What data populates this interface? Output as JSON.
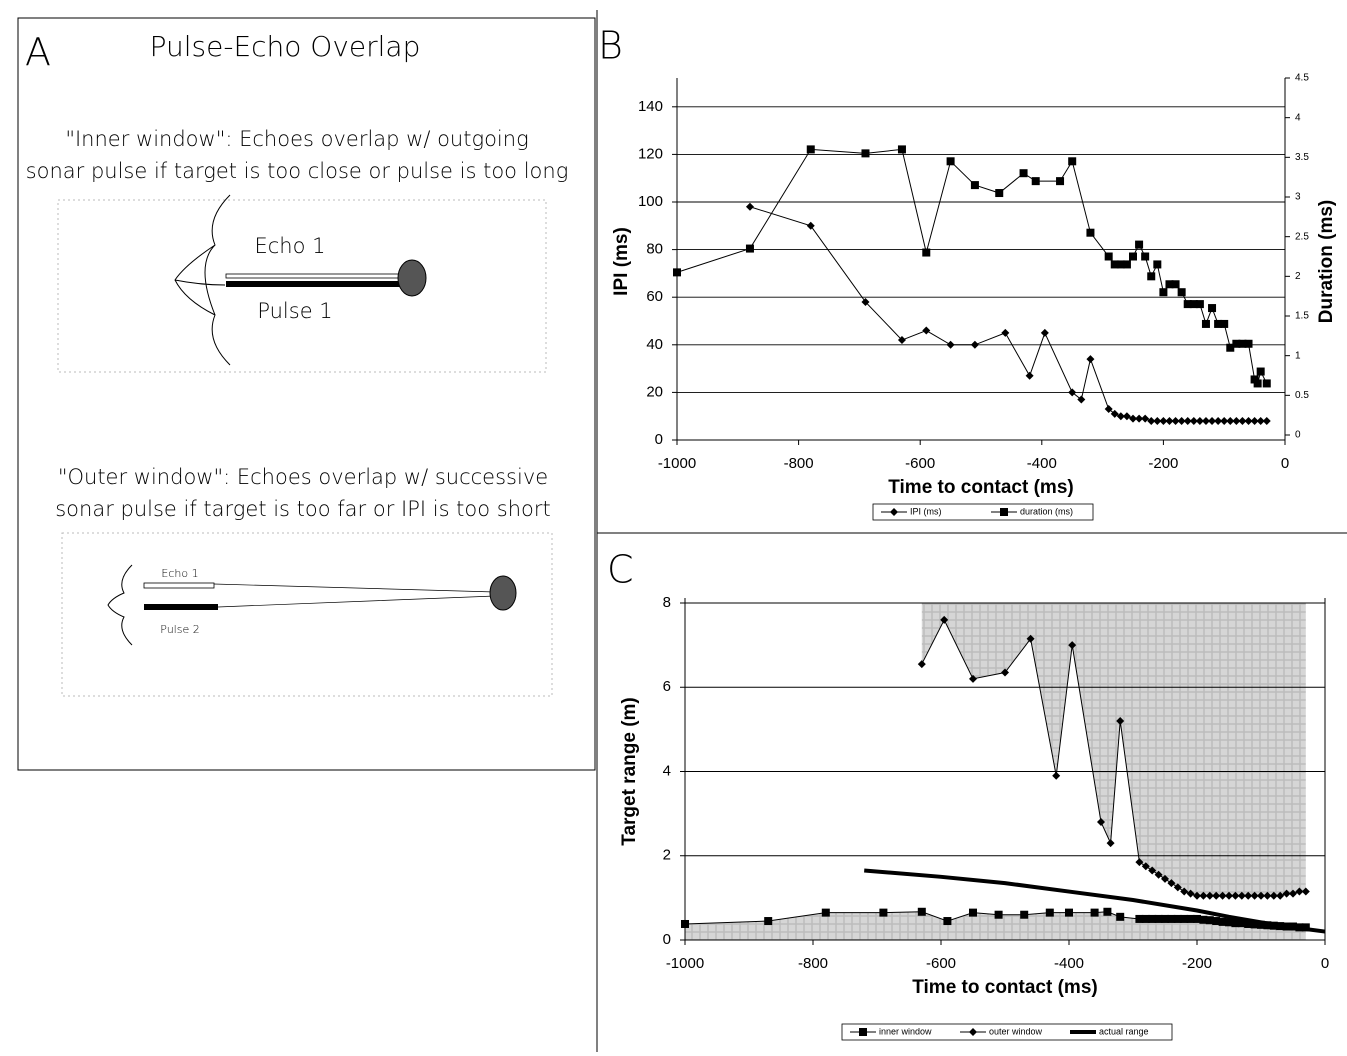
{
  "panel_a": {
    "label": "A",
    "title": "Pulse-Echo Overlap",
    "inner": {
      "caption": [
        "\"Inner window\": Echoes overlap w/ outgoing",
        "sonar pulse if target is too close or pulse is too long"
      ],
      "echo": "Echo 1",
      "pulse": "Pulse 1"
    },
    "outer": {
      "caption": [
        "\"Outer window\": Echoes overlap w/ successive",
        "sonar pulse if target is too far or IPI is too short"
      ],
      "echo": "Echo 1",
      "pulse": "Pulse 2"
    }
  },
  "chart_data": [
    {
      "type": "line",
      "panel_label": "B",
      "xlabel": "Time to contact (ms)",
      "ylabel": "IPI (ms)",
      "y2label": "Duration (ms)",
      "xlim": [
        -1000,
        0
      ],
      "xticks": [
        -1000,
        -800,
        -600,
        -400,
        -200,
        0
      ],
      "ylim": [
        0,
        150
      ],
      "yticks": [
        0,
        20,
        40,
        60,
        80,
        100,
        120,
        140
      ],
      "y2lim": [
        0,
        4.5
      ],
      "y2ticks": [
        0,
        0.5,
        1,
        1.5,
        2,
        2.5,
        3,
        3.5,
        4,
        4.5
      ],
      "grid": true,
      "series": [
        {
          "name": "IPI (ms)",
          "color": "#000000",
          "marker": "diamond",
          "x": [
            -880,
            -780,
            -690,
            -630,
            -590,
            -550,
            -510,
            -460,
            -420,
            -395,
            -350,
            -335,
            -320,
            -290,
            -280,
            -270,
            -260,
            -250,
            -240,
            -230,
            -220,
            -210,
            -200,
            -190,
            -180,
            -170,
            -160,
            -150,
            -140,
            -130,
            -120,
            -110,
            -100,
            -90,
            -80,
            -70,
            -60,
            -50,
            -40,
            -30
          ],
          "values": [
            98,
            90,
            58,
            42,
            46,
            40,
            40,
            45,
            27,
            45,
            20,
            17,
            34,
            13,
            11,
            10,
            10,
            9,
            9,
            9,
            8,
            8,
            8,
            8,
            8,
            8,
            8,
            8,
            8,
            8,
            8,
            8,
            8,
            8,
            8,
            8,
            8,
            8,
            8,
            8
          ]
        },
        {
          "name": "duration (ms)",
          "color": "#000000",
          "marker": "square",
          "axis": "y2",
          "x": [
            -1000,
            -880,
            -780,
            -690,
            -630,
            -590,
            -550,
            -510,
            -470,
            -430,
            -410,
            -370,
            -350,
            -320,
            -290,
            -280,
            -270,
            -260,
            -250,
            -240,
            -230,
            -220,
            -210,
            -200,
            -190,
            -180,
            -170,
            -160,
            -150,
            -140,
            -130,
            -120,
            -110,
            -100,
            -90,
            -80,
            -70,
            -60,
            -50,
            -45,
            -40,
            -30
          ],
          "values": [
            2.05,
            2.35,
            3.6,
            3.55,
            3.6,
            2.3,
            3.45,
            3.15,
            3.05,
            3.3,
            3.2,
            3.2,
            3.45,
            2.55,
            2.25,
            2.15,
            2.15,
            2.15,
            2.25,
            2.4,
            2.25,
            2,
            2.15,
            1.8,
            1.9,
            1.9,
            1.8,
            1.65,
            1.65,
            1.65,
            1.4,
            1.6,
            1.4,
            1.4,
            1.1,
            1.15,
            1.15,
            1.15,
            0.7,
            0.65,
            0.8,
            0.65
          ]
        }
      ]
    },
    {
      "type": "line",
      "panel_label": "C",
      "xlabel": "Time to contact (ms)",
      "ylabel": "Target range (m)",
      "xlim": [
        -1000,
        0
      ],
      "xticks": [
        -1000,
        -800,
        -600,
        -400,
        -200,
        0
      ],
      "ylim": [
        0,
        8
      ],
      "yticks": [
        0,
        2,
        4,
        6,
        8
      ],
      "grid": true,
      "series": [
        {
          "name": "inner window",
          "color": "#000000",
          "marker": "square",
          "fill": "below",
          "x": [
            -1000,
            -870,
            -780,
            -690,
            -630,
            -590,
            -550,
            -510,
            -470,
            -430,
            -400,
            -360,
            -340,
            -320,
            -290,
            -280,
            -270,
            -260,
            -250,
            -240,
            -230,
            -220,
            -210,
            -200,
            -190,
            -180,
            -170,
            -160,
            -150,
            -140,
            -130,
            -120,
            -110,
            -100,
            -90,
            -80,
            -70,
            -60,
            -50,
            -40,
            -30
          ],
          "values": [
            0.38,
            0.45,
            0.65,
            0.65,
            0.67,
            0.45,
            0.65,
            0.6,
            0.6,
            0.65,
            0.65,
            0.65,
            0.67,
            0.55,
            0.5,
            0.5,
            0.5,
            0.5,
            0.5,
            0.5,
            0.5,
            0.5,
            0.5,
            0.5,
            0.48,
            0.47,
            0.45,
            0.43,
            0.42,
            0.4,
            0.4,
            0.38,
            0.37,
            0.36,
            0.35,
            0.34,
            0.33,
            0.32,
            0.32,
            0.3,
            0.3
          ]
        },
        {
          "name": "outer window",
          "color": "#000000",
          "marker": "diamond",
          "fill": "above",
          "x": [
            -630,
            -595,
            -550,
            -500,
            -460,
            -420,
            -395,
            -350,
            -335,
            -320,
            -290,
            -280,
            -270,
            -260,
            -250,
            -240,
            -230,
            -220,
            -210,
            -200,
            -190,
            -180,
            -170,
            -160,
            -150,
            -140,
            -130,
            -120,
            -110,
            -100,
            -90,
            -80,
            -70,
            -60,
            -50,
            -40,
            -30
          ],
          "values": [
            6.55,
            7.6,
            6.2,
            6.35,
            7.15,
            3.9,
            7.0,
            2.8,
            2.3,
            5.2,
            1.85,
            1.75,
            1.65,
            1.55,
            1.45,
            1.35,
            1.25,
            1.15,
            1.1,
            1.05,
            1.05,
            1.05,
            1.05,
            1.05,
            1.05,
            1.05,
            1.05,
            1.05,
            1.05,
            1.05,
            1.05,
            1.05,
            1.05,
            1.1,
            1.1,
            1.15,
            1.15
          ]
        },
        {
          "name": "actual range",
          "color": "#000000",
          "marker": "none",
          "width": 4,
          "x": [
            -720,
            -600,
            -500,
            -400,
            -300,
            -200,
            -150,
            -100,
            -50,
            0
          ],
          "values": [
            1.65,
            1.5,
            1.35,
            1.15,
            0.95,
            0.7,
            0.55,
            0.42,
            0.3,
            0.2
          ]
        }
      ]
    }
  ]
}
